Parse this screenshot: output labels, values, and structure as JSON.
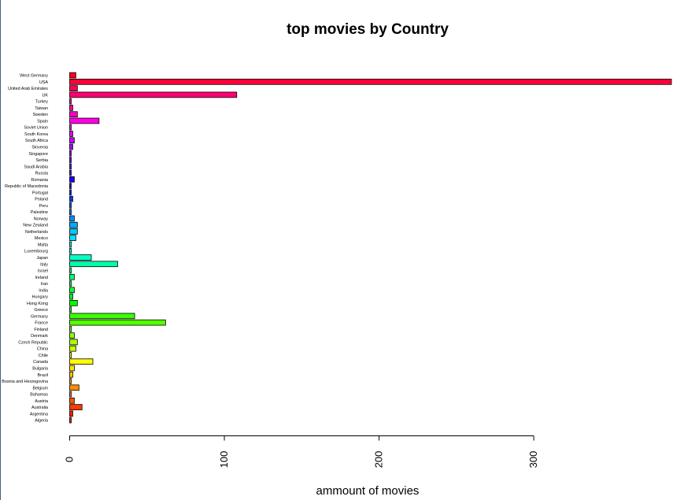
{
  "chart_data": {
    "type": "bar",
    "orientation": "horizontal",
    "title": "top movies by Country",
    "xlabel": "ammount of movies",
    "ylabel": "",
    "xlim": [
      0,
      390
    ],
    "xticks": [
      0,
      100,
      200,
      300
    ],
    "grid": false,
    "legend": "none",
    "categories": [
      "Algeria",
      "Argentina",
      "Australia",
      "Austria",
      "Bahamas",
      "Belgium",
      "Bosnia and Herzegovina",
      "Brazil",
      "Bulgaria",
      "Canada",
      "Chile",
      "China",
      "Czech Republic",
      "Denmark",
      "Finland",
      "France",
      "Germany",
      "Greece",
      "Hong Kong",
      "Hungary",
      "India",
      "Iran",
      "Ireland",
      "Israel",
      "Italy",
      "Japan",
      "Luxembourg",
      "Malta",
      "Mexico",
      "Netherlands",
      "New Zealand",
      "Norway",
      "Palestine",
      "Peru",
      "Poland",
      "Portugal",
      "Republic of Macedonia",
      "Romania",
      "Russia",
      "Saudi Arabia",
      "Serbia",
      "Singapore",
      "Slovenia",
      "South Africa",
      "South Korea",
      "Soviet Union",
      "Spain",
      "Sweden",
      "Taiwan",
      "Turkey",
      "UK",
      "United Arab Emirates",
      "USA",
      "West Germany"
    ],
    "values": [
      1,
      2,
      8,
      3,
      1,
      6,
      1,
      2,
      3,
      15,
      1,
      4,
      5,
      3,
      1,
      62,
      42,
      1,
      5,
      2,
      3,
      1,
      3,
      1,
      31,
      14,
      1,
      1,
      4,
      5,
      5,
      3,
      1,
      1,
      2,
      1,
      1,
      3,
      1,
      1,
      1,
      1,
      2,
      3,
      2,
      1,
      19,
      5,
      2,
      1,
      108,
      5,
      389,
      4
    ],
    "palette": "rainbow"
  }
}
